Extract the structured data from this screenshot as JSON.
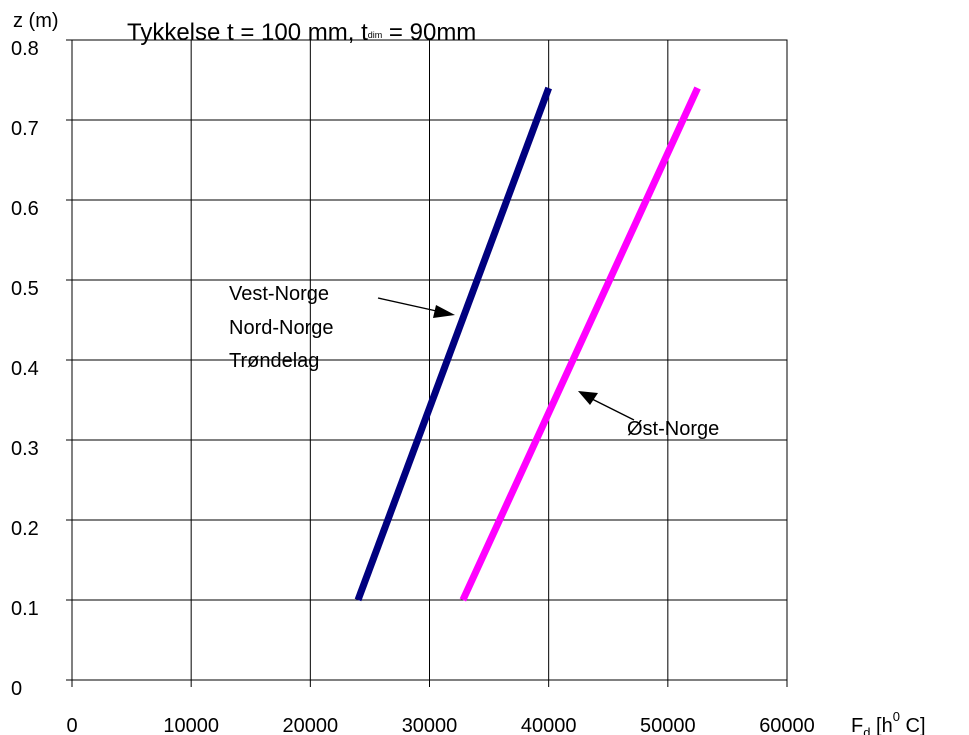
{
  "chart_data": {
    "type": "line",
    "title": {
      "main": "Tykkelse t = 100 mm, t",
      "sub": "dim",
      "tail": "  = 90mm"
    },
    "ylabel": "z (m)",
    "xlabel": {
      "base": "F",
      "sub": "d",
      "mid": " [h",
      "sup": "0",
      "tail": " C]"
    },
    "xlim": [
      0,
      60000
    ],
    "ylim": [
      0,
      0.8
    ],
    "x_ticks": [
      "0",
      "10000",
      "20000",
      "30000",
      "40000",
      "50000",
      "60000"
    ],
    "y_ticks": [
      "0",
      "0.1",
      "0.2",
      "0.3",
      "0.4",
      "0.5",
      "0.6",
      "0.7",
      "0.8"
    ],
    "grid": true,
    "series": [
      {
        "color": "#00007f",
        "points": [
          [
            24000,
            0.1
          ],
          [
            40000,
            0.74
          ]
        ]
      },
      {
        "color": "#ff00ff",
        "points": [
          [
            32800,
            0.1
          ],
          [
            52500,
            0.74
          ]
        ]
      }
    ],
    "annotations": [
      {
        "lines": [
          "Vest-Norge",
          "Nord-Norge",
          "Trøndelag"
        ]
      },
      {
        "lines": [
          "Øst-Norge"
        ]
      }
    ]
  }
}
